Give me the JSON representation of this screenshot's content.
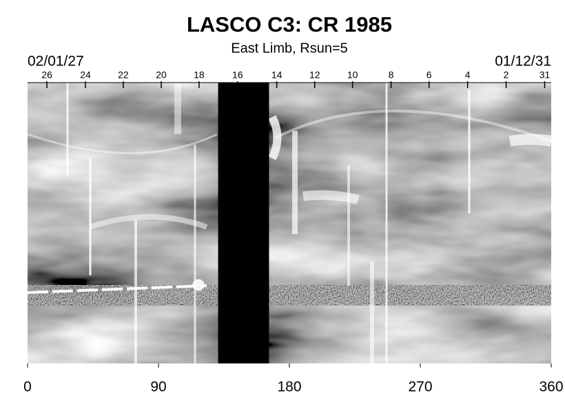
{
  "chart_data": {
    "type": "synoptic-map",
    "title": "LASCO C3: CR 1985",
    "subtitle": "East Limb, Rsun=5",
    "start_date": "02/01/27",
    "end_date": "01/12/31",
    "xlim": [
      0,
      360
    ],
    "xticks": [
      0,
      90,
      180,
      270,
      360
    ],
    "top_ticks": [
      {
        "value": 13.3,
        "label": "26"
      },
      {
        "value": 39.8,
        "label": "24"
      },
      {
        "value": 65.8,
        "label": "22"
      },
      {
        "value": 91.9,
        "label": "20"
      },
      {
        "value": 117.9,
        "label": "18"
      },
      {
        "value": 144.4,
        "label": "16"
      },
      {
        "value": 171.3,
        "label": "14"
      },
      {
        "value": 197.4,
        "label": "12"
      },
      {
        "value": 223.4,
        "label": "10"
      },
      {
        "value": 249.9,
        "label": "8"
      },
      {
        "value": 276.0,
        "label": "6"
      },
      {
        "value": 302.5,
        "label": "4"
      },
      {
        "value": 329.0,
        "label": "2"
      },
      {
        "value": 355.5,
        "label": "31"
      }
    ],
    "data_gap": [
      131,
      166
    ],
    "gap_color": "#000000"
  }
}
